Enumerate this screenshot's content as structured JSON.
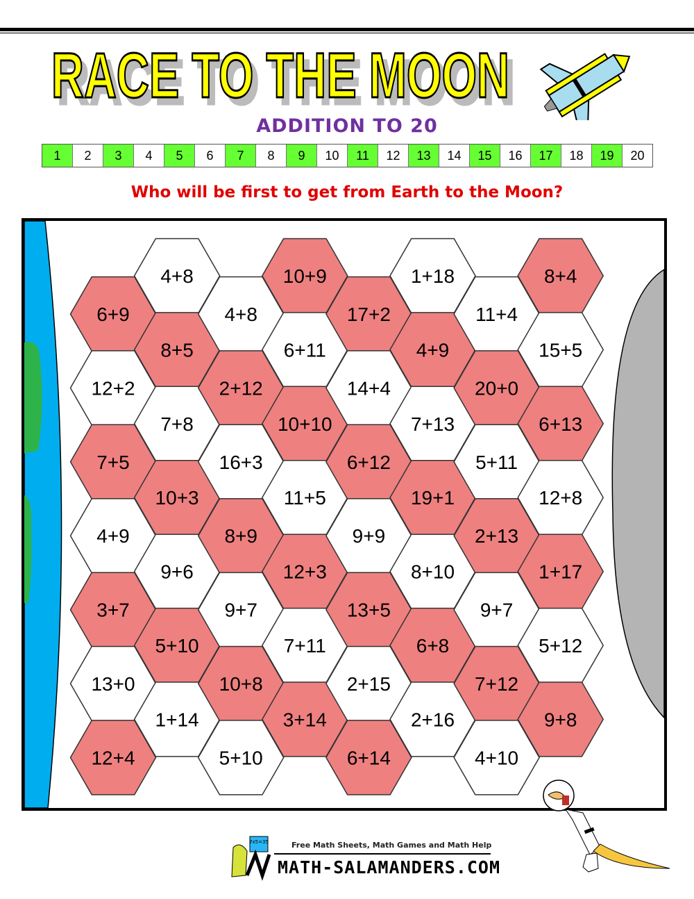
{
  "title": "RACE TO THE MOON",
  "subtitle": "ADDITION TO 20",
  "number_strip": [
    "1",
    "2",
    "3",
    "4",
    "5",
    "6",
    "7",
    "8",
    "9",
    "10",
    "11",
    "12",
    "13",
    "14",
    "15",
    "16",
    "17",
    "18",
    "19",
    "20"
  ],
  "question": "Who will be first to get from Earth to the Moon?",
  "colors": {
    "odd_cell": "#66FF33",
    "hex_red": "#EF8080",
    "hex_white": "#FFFFFF",
    "earth_water": "#00AEEF",
    "earth_land": "#2DB34A",
    "moon": "#B4B4B4",
    "subtitle": "#7030A0",
    "question": "#E00000",
    "title_fill": "#FFFF00"
  },
  "board": {
    "columns": [
      [
        {
          "t": "6+9",
          "c": "red"
        },
        {
          "t": "12+2",
          "c": "white"
        },
        {
          "t": "7+5",
          "c": "red"
        },
        {
          "t": "4+9",
          "c": "white"
        },
        {
          "t": "3+7",
          "c": "red"
        },
        {
          "t": "13+0",
          "c": "white"
        },
        {
          "t": "12+4",
          "c": "red"
        }
      ],
      [
        {
          "t": "4+8",
          "c": "white"
        },
        {
          "t": "8+5",
          "c": "red"
        },
        {
          "t": "7+8",
          "c": "white"
        },
        {
          "t": "10+3",
          "c": "red"
        },
        {
          "t": "9+6",
          "c": "white"
        },
        {
          "t": "5+10",
          "c": "red"
        },
        {
          "t": "1+14",
          "c": "white"
        }
      ],
      [
        {
          "t": "4+8",
          "c": "white"
        },
        {
          "t": "2+12",
          "c": "red"
        },
        {
          "t": "16+3",
          "c": "white"
        },
        {
          "t": "8+9",
          "c": "red"
        },
        {
          "t": "9+7",
          "c": "white"
        },
        {
          "t": "10+8",
          "c": "red"
        },
        {
          "t": "5+10",
          "c": "white"
        }
      ],
      [
        {
          "t": "10+9",
          "c": "red"
        },
        {
          "t": "6+11",
          "c": "white"
        },
        {
          "t": "10+10",
          "c": "red"
        },
        {
          "t": "11+5",
          "c": "white"
        },
        {
          "t": "12+3",
          "c": "red"
        },
        {
          "t": "7+11",
          "c": "white"
        },
        {
          "t": "3+14",
          "c": "red"
        }
      ],
      [
        {
          "t": "17+2",
          "c": "red"
        },
        {
          "t": "14+4",
          "c": "white"
        },
        {
          "t": "6+12",
          "c": "red"
        },
        {
          "t": "9+9",
          "c": "white"
        },
        {
          "t": "13+5",
          "c": "red"
        },
        {
          "t": "2+15",
          "c": "white"
        },
        {
          "t": "6+14",
          "c": "red"
        }
      ],
      [
        {
          "t": "1+18",
          "c": "white"
        },
        {
          "t": "4+9",
          "c": "red"
        },
        {
          "t": "7+13",
          "c": "white"
        },
        {
          "t": "19+1",
          "c": "red"
        },
        {
          "t": "8+10",
          "c": "white"
        },
        {
          "t": "6+8",
          "c": "red"
        },
        {
          "t": "2+16",
          "c": "white"
        }
      ],
      [
        {
          "t": "11+4",
          "c": "white"
        },
        {
          "t": "20+0",
          "c": "red"
        },
        {
          "t": "5+11",
          "c": "white"
        },
        {
          "t": "2+13",
          "c": "red"
        },
        {
          "t": "9+7",
          "c": "white"
        },
        {
          "t": "7+12",
          "c": "red"
        },
        {
          "t": "4+10",
          "c": "white"
        }
      ],
      [
        {
          "t": "8+4",
          "c": "red"
        },
        {
          "t": "15+5",
          "c": "white"
        },
        {
          "t": "6+13",
          "c": "red"
        },
        {
          "t": "12+8",
          "c": "white"
        },
        {
          "t": "1+17",
          "c": "red"
        },
        {
          "t": "5+12",
          "c": "white"
        },
        {
          "t": "9+8",
          "c": "red"
        }
      ]
    ]
  },
  "footer": {
    "tagline": "Free Math Sheets, Math Games and Math Help",
    "logo": "MATH-SALAMANDERS.COM",
    "logo_board": "7x5=35"
  }
}
